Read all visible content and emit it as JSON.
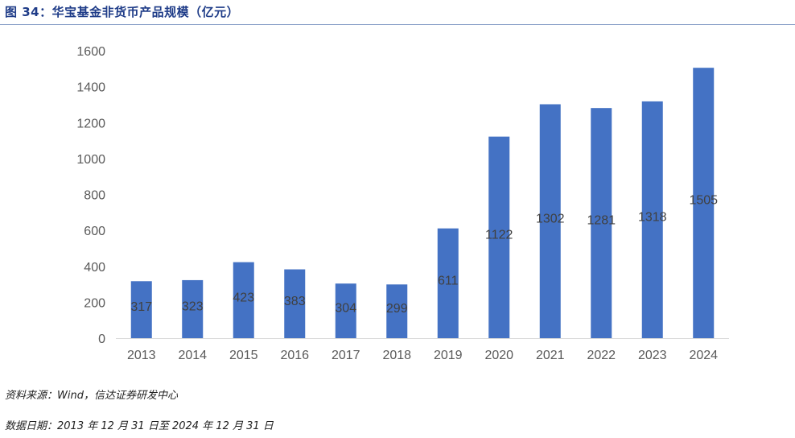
{
  "title": "图 34：华宝基金非货币产品规模（亿元）",
  "source": "资料来源：Wind，信达证券研发中心",
  "date_note": "数据日期：2013 年 12 月 31 日至 2024 年 12 月 31 日",
  "bar_color": "#4472c4",
  "chart_data": {
    "type": "bar",
    "title": "",
    "xlabel": "",
    "ylabel": "",
    "categories": [
      "2013",
      "2014",
      "2015",
      "2016",
      "2017",
      "2018",
      "2019",
      "2020",
      "2021",
      "2022",
      "2023",
      "2024"
    ],
    "values": [
      317,
      323,
      423,
      383,
      304,
      299,
      611,
      1122,
      1302,
      1281,
      1318,
      1505
    ],
    "ylim": [
      0,
      1600
    ],
    "yticks": [
      0,
      200,
      400,
      600,
      800,
      1000,
      1200,
      1400,
      1600
    ],
    "grid": false,
    "legend": "none"
  }
}
